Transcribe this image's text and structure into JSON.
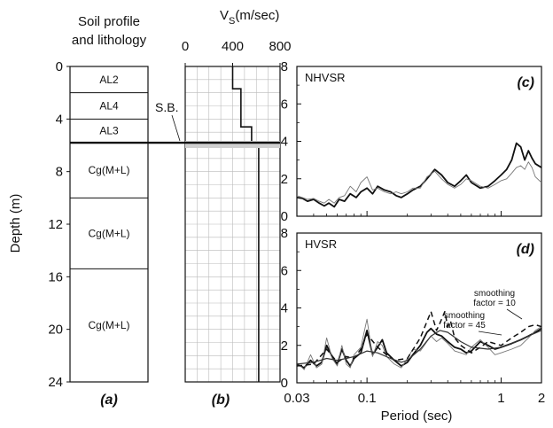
{
  "chart_data": [
    {
      "panel": "(a)",
      "type": "table",
      "title": "Soil profile and lithology",
      "title_lines": [
        "Soil profile",
        "and lithology"
      ],
      "ylabel": "Depth (m)",
      "ylim": [
        0,
        24
      ],
      "yticks": [
        "0",
        "4",
        "8",
        "12",
        "16",
        "20",
        "24"
      ],
      "ytick_values": [
        0,
        4,
        8,
        12,
        16,
        20,
        24
      ],
      "layers": [
        {
          "label": "AL2",
          "top": 0,
          "bottom": 2
        },
        {
          "label": "AL4",
          "top": 2,
          "bottom": 4
        },
        {
          "label": "AL3",
          "top": 4,
          "bottom": 5.8
        },
        {
          "label": "Cg(M+L)",
          "top": 5.8,
          "bottom": 10
        },
        {
          "label": "Cg(M+L)",
          "top": 10,
          "bottom": 15.4
        },
        {
          "label": "Cg(M+L)",
          "top": 15.4,
          "bottom": 24
        }
      ],
      "boundary_label": "S.B.",
      "boundary_depth": 5.8,
      "panel_label": "(a)"
    },
    {
      "panel": "(b)",
      "type": "line",
      "title": "V",
      "title_sub": "S",
      "title_suffix": "(m/sec)",
      "xlim": [
        0,
        800
      ],
      "xticks": [
        "0",
        "400",
        "800"
      ],
      "xtick_values": [
        0,
        400,
        800
      ],
      "ylim": [
        0,
        24
      ],
      "grid": true,
      "profile": [
        {
          "vs": 400,
          "top": 0,
          "bottom": 1.7
        },
        {
          "vs": 470,
          "top": 1.7,
          "bottom": 4.6
        },
        {
          "vs": 560,
          "top": 4.6,
          "bottom": 5.8
        },
        {
          "vs": 620,
          "top": 5.8,
          "bottom": 24
        }
      ],
      "boundary_depth": 5.8,
      "panel_label": "(b)"
    },
    {
      "panel": "(c)",
      "type": "line",
      "title": "NHVSR",
      "x_scale": "log",
      "xlim": [
        0.03,
        2
      ],
      "ylim": [
        0,
        8
      ],
      "yticks": [
        "0",
        "2",
        "4",
        "6",
        "8"
      ],
      "ytick_values": [
        0,
        2,
        4,
        6,
        8
      ],
      "series": [
        {
          "style": "thick",
          "x": [
            0.03,
            0.033,
            0.036,
            0.04,
            0.044,
            0.048,
            0.052,
            0.057,
            0.062,
            0.068,
            0.075,
            0.083,
            0.09,
            0.1,
            0.11,
            0.12,
            0.135,
            0.15,
            0.165,
            0.18,
            0.2,
            0.22,
            0.25,
            0.28,
            0.32,
            0.36,
            0.4,
            0.45,
            0.5,
            0.55,
            0.6,
            0.7,
            0.8,
            0.9,
            1.0,
            1.1,
            1.2,
            1.3,
            1.4,
            1.5,
            1.6,
            1.7,
            1.8,
            2.0
          ],
          "y": [
            1.0,
            0.95,
            0.8,
            0.9,
            0.7,
            0.55,
            0.7,
            0.5,
            0.9,
            0.8,
            1.2,
            1.0,
            1.3,
            1.5,
            1.2,
            1.6,
            1.4,
            1.3,
            1.1,
            1.0,
            1.2,
            1.4,
            1.6,
            2.0,
            2.5,
            2.2,
            1.8,
            1.6,
            1.9,
            2.2,
            1.8,
            1.5,
            1.6,
            1.9,
            2.2,
            2.5,
            3.0,
            3.9,
            3.7,
            3.0,
            3.5,
            3.1,
            2.8,
            2.6
          ]
        },
        {
          "style": "thin",
          "x": [
            0.03,
            0.033,
            0.036,
            0.04,
            0.044,
            0.048,
            0.052,
            0.057,
            0.062,
            0.068,
            0.075,
            0.083,
            0.09,
            0.1,
            0.11,
            0.12,
            0.135,
            0.15,
            0.165,
            0.18,
            0.2,
            0.22,
            0.25,
            0.28,
            0.32,
            0.36,
            0.4,
            0.45,
            0.5,
            0.55,
            0.6,
            0.7,
            0.8,
            0.9,
            1.0,
            1.1,
            1.2,
            1.3,
            1.4,
            1.5,
            1.6,
            1.7,
            1.8,
            2.0
          ],
          "y": [
            1.1,
            1.0,
            0.9,
            0.95,
            0.8,
            0.7,
            0.9,
            0.7,
            1.0,
            1.1,
            1.6,
            1.3,
            1.8,
            2.1,
            1.4,
            1.5,
            1.3,
            1.2,
            1.3,
            1.2,
            1.3,
            1.5,
            1.5,
            2.1,
            2.4,
            2.0,
            1.7,
            1.5,
            1.7,
            2.0,
            1.9,
            1.6,
            1.5,
            1.7,
            1.9,
            2.0,
            2.3,
            2.6,
            2.7,
            2.5,
            2.9,
            2.6,
            2.1,
            1.8
          ]
        }
      ],
      "panel_label": "(c)"
    },
    {
      "panel": "(d)",
      "type": "line",
      "title": "HVSR",
      "x_scale": "log",
      "xlim": [
        0.03,
        2
      ],
      "xticks": [
        "0.03",
        "0.1",
        "1",
        "2"
      ],
      "xtick_values": [
        0.03,
        0.1,
        1,
        2
      ],
      "xlabel": "Period (sec)",
      "ylim": [
        0,
        8
      ],
      "yticks": [
        "0",
        "2",
        "4",
        "6",
        "8"
      ],
      "ytick_values": [
        0,
        2,
        4,
        6,
        8
      ],
      "series": [
        {
          "style": "thick",
          "x": [
            0.03,
            0.034,
            0.038,
            0.042,
            0.046,
            0.05,
            0.055,
            0.06,
            0.065,
            0.07,
            0.075,
            0.08,
            0.09,
            0.1,
            0.11,
            0.12,
            0.13,
            0.14,
            0.16,
            0.18,
            0.2,
            0.22,
            0.25,
            0.28,
            0.3,
            0.33,
            0.36,
            0.4,
            0.45,
            0.5,
            0.55,
            0.6,
            0.7,
            0.8,
            0.9,
            1.0,
            1.2,
            1.4,
            1.6,
            1.8,
            2.0
          ],
          "y": [
            1.0,
            0.8,
            1.2,
            0.9,
            1.1,
            2.0,
            1.4,
            1.0,
            1.8,
            1.2,
            0.9,
            1.3,
            1.6,
            2.8,
            1.5,
            1.9,
            2.3,
            1.6,
            1.2,
            0.9,
            1.1,
            1.5,
            2.0,
            2.7,
            2.9,
            2.6,
            2.5,
            2.2,
            1.9,
            1.8,
            1.6,
            1.7,
            2.2,
            2.0,
            1.8,
            1.9,
            2.1,
            2.3,
            2.5,
            2.7,
            2.9
          ]
        },
        {
          "style": "thin",
          "x": [
            0.03,
            0.034,
            0.038,
            0.042,
            0.046,
            0.05,
            0.055,
            0.06,
            0.065,
            0.07,
            0.075,
            0.08,
            0.09,
            0.1,
            0.11,
            0.12,
            0.13,
            0.14,
            0.16,
            0.18,
            0.2,
            0.22,
            0.25,
            0.28,
            0.3,
            0.33,
            0.36,
            0.4,
            0.45,
            0.5,
            0.55,
            0.6,
            0.7,
            0.8,
            0.9,
            1.0,
            1.2,
            1.4,
            1.6,
            1.8,
            2.0
          ],
          "y": [
            1.1,
            0.7,
            1.5,
            0.8,
            1.0,
            2.4,
            1.3,
            0.9,
            2.0,
            1.0,
            0.8,
            1.5,
            1.9,
            3.4,
            1.4,
            2.2,
            2.0,
            1.4,
            1.0,
            0.8,
            1.3,
            1.8,
            1.7,
            2.2,
            2.5,
            2.2,
            2.4,
            2.1,
            1.7,
            1.6,
            1.5,
            1.9,
            2.3,
            1.9,
            1.5,
            1.6,
            1.8,
            2.0,
            2.4,
            2.8,
            3.0
          ]
        },
        {
          "style": "dashed",
          "name": "smoothing factor = 10",
          "x": [
            0.03,
            0.04,
            0.05,
            0.06,
            0.07,
            0.08,
            0.09,
            0.1,
            0.12,
            0.14,
            0.16,
            0.2,
            0.25,
            0.3,
            0.33,
            0.35,
            0.38,
            0.4,
            0.42,
            0.45,
            0.5,
            0.6,
            0.7,
            0.8,
            1.0,
            1.2,
            1.4,
            1.6,
            1.8,
            2.0
          ],
          "y": [
            0.9,
            1.0,
            1.8,
            1.1,
            1.4,
            1.3,
            1.8,
            2.6,
            1.9,
            1.5,
            1.2,
            1.3,
            2.4,
            3.8,
            2.8,
            3.2,
            3.8,
            3.0,
            3.3,
            2.4,
            2.0,
            1.6,
            1.9,
            2.2,
            2.0,
            2.4,
            2.7,
            3.0,
            3.1,
            3.0
          ]
        },
        {
          "style": "smooth",
          "name": "smoothing factor = 45",
          "x": [
            0.03,
            0.04,
            0.05,
            0.06,
            0.07,
            0.08,
            0.1,
            0.12,
            0.15,
            0.18,
            0.2,
            0.25,
            0.3,
            0.35,
            0.4,
            0.5,
            0.6,
            0.8,
            1.0,
            1.3,
            1.6,
            2.0
          ],
          "y": [
            1.0,
            1.1,
            1.3,
            1.2,
            1.3,
            1.4,
            1.7,
            1.6,
            1.3,
            1.1,
            1.2,
            1.8,
            2.5,
            2.8,
            2.7,
            2.2,
            1.9,
            1.8,
            1.9,
            2.2,
            2.5,
            2.8
          ]
        }
      ],
      "annotations": [
        {
          "lines": [
            "smoothing",
            "factor = 10"
          ]
        },
        {
          "lines": [
            "smoothing",
            "factor = 45"
          ]
        }
      ],
      "panel_label": "(d)"
    }
  ]
}
